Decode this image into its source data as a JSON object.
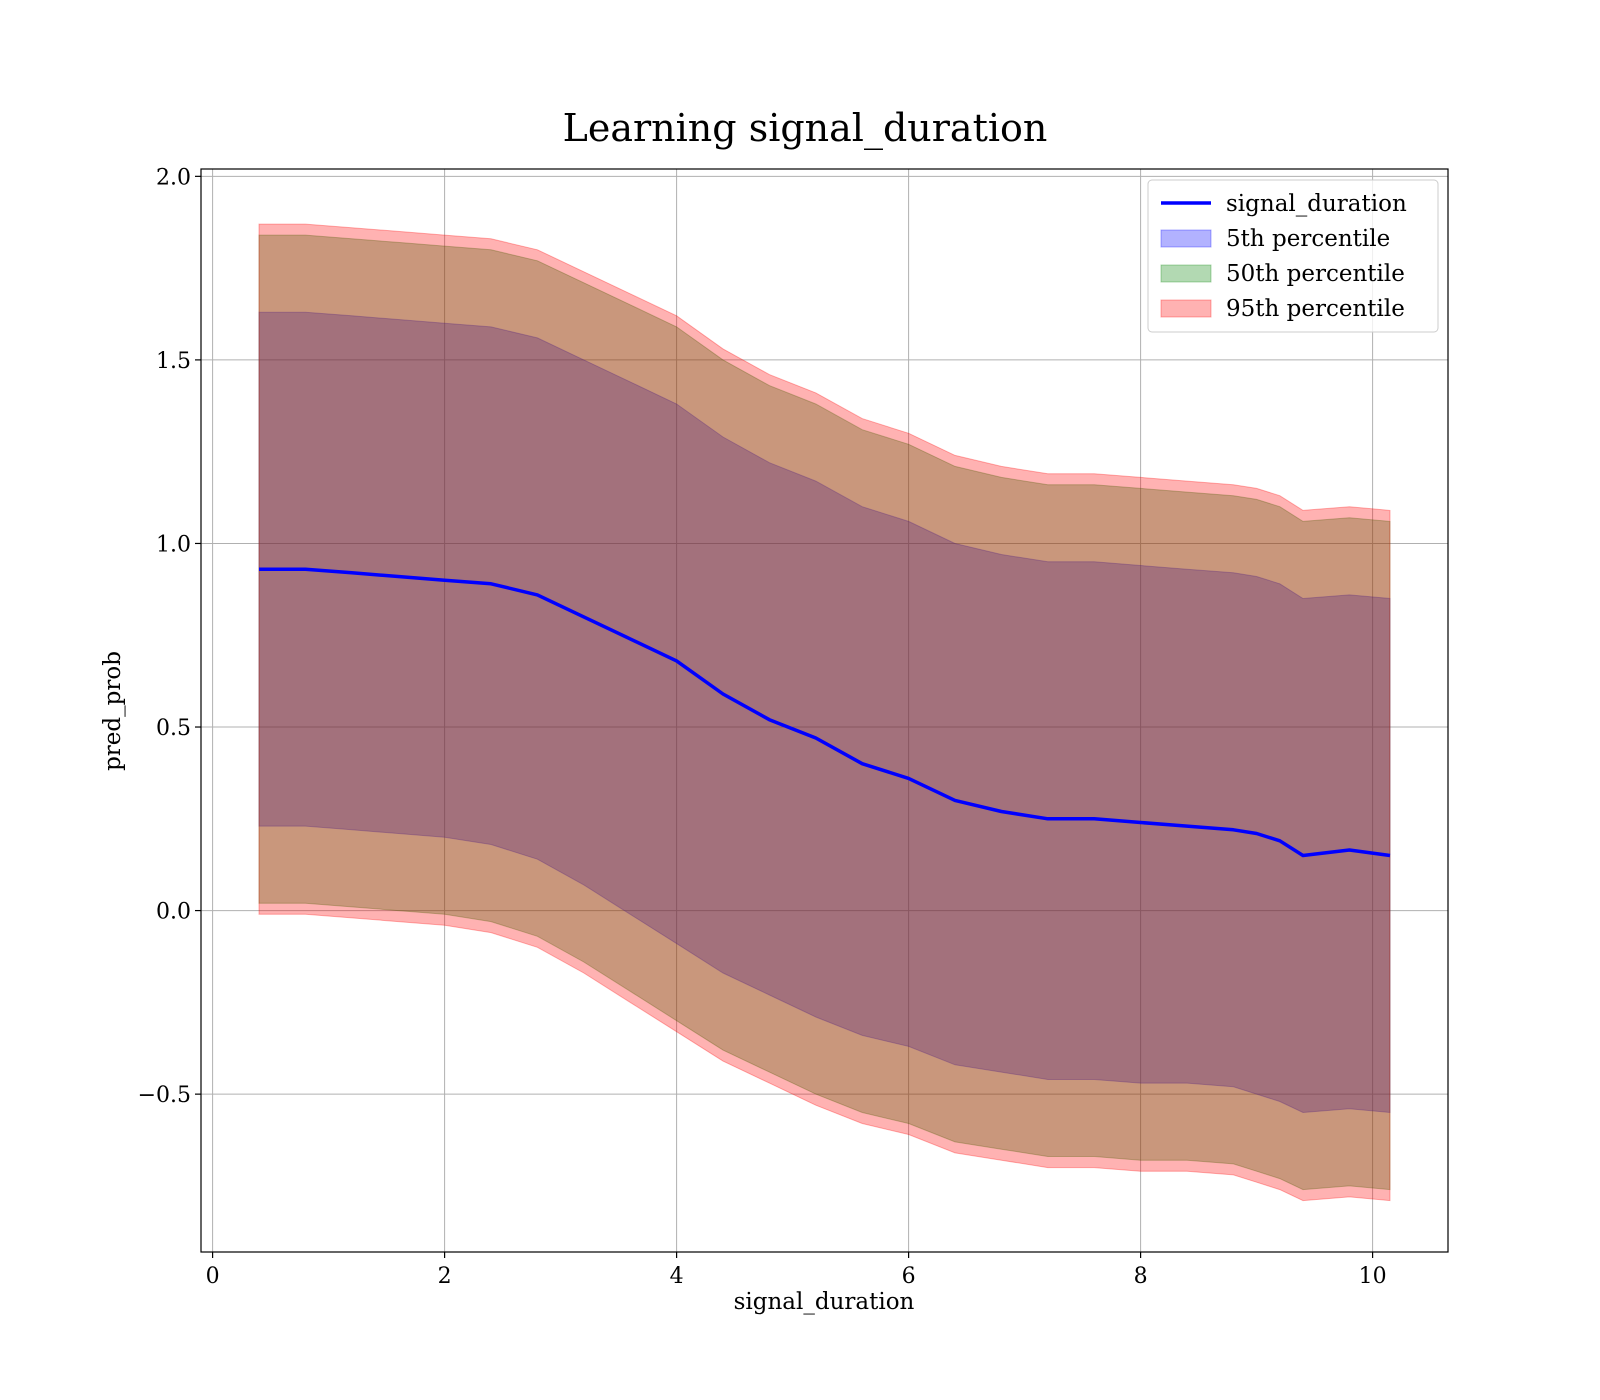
{
  "chart_data": {
    "type": "area",
    "title": "Learning signal_duration",
    "xlabel": "signal_duration",
    "ylabel": "pred_prob",
    "xlim": [
      -0.1,
      10.65
    ],
    "ylim": [
      -0.93,
      2.02
    ],
    "xticks": [
      0,
      2,
      4,
      6,
      8,
      10
    ],
    "xtick_labels": [
      "0",
      "2",
      "4",
      "6",
      "8",
      "10"
    ],
    "yticks": [
      -0.5,
      0.0,
      0.5,
      1.0,
      1.5,
      2.0
    ],
    "ytick_labels": [
      "−0.5",
      "0.0",
      "0.5",
      "1.0",
      "1.5",
      "2.0"
    ],
    "grid": true,
    "legend_position": "top-right",
    "x": [
      0.4,
      0.8,
      1.2,
      1.6,
      2.0,
      2.4,
      2.8,
      3.2,
      3.6,
      4.0,
      4.4,
      4.8,
      5.2,
      5.6,
      6.0,
      6.4,
      6.8,
      7.2,
      7.6,
      8.0,
      8.4,
      8.8,
      9.0,
      9.2,
      9.4,
      9.8,
      10.15
    ],
    "series": [
      {
        "name": "signal_duration",
        "kind": "line",
        "color": "#0000ff",
        "values": [
          0.93,
          0.93,
          0.92,
          0.91,
          0.9,
          0.89,
          0.86,
          0.8,
          0.74,
          0.68,
          0.59,
          0.52,
          0.47,
          0.4,
          0.36,
          0.3,
          0.27,
          0.25,
          0.25,
          0.24,
          0.23,
          0.22,
          0.21,
          0.19,
          0.15,
          0.165,
          0.15
        ]
      },
      {
        "name": "5th percentile",
        "kind": "band",
        "color": "#0000ff",
        "lower": [
          0.23,
          0.23,
          0.22,
          0.21,
          0.2,
          0.18,
          0.14,
          0.07,
          -0.01,
          -0.09,
          -0.17,
          -0.23,
          -0.29,
          -0.34,
          -0.37,
          -0.42,
          -0.44,
          -0.46,
          -0.46,
          -0.47,
          -0.47,
          -0.48,
          -0.5,
          -0.52,
          -0.55,
          -0.54,
          -0.55
        ],
        "upper": [
          1.63,
          1.63,
          1.62,
          1.61,
          1.6,
          1.59,
          1.56,
          1.5,
          1.44,
          1.38,
          1.29,
          1.22,
          1.17,
          1.1,
          1.06,
          1.0,
          0.97,
          0.95,
          0.95,
          0.94,
          0.93,
          0.92,
          0.91,
          0.89,
          0.85,
          0.86,
          0.85
        ]
      },
      {
        "name": "50th percentile",
        "kind": "band",
        "color": "#008000",
        "lower": [
          0.02,
          0.02,
          0.01,
          0.0,
          -0.01,
          -0.03,
          -0.07,
          -0.14,
          -0.22,
          -0.3,
          -0.38,
          -0.44,
          -0.5,
          -0.55,
          -0.58,
          -0.63,
          -0.65,
          -0.67,
          -0.67,
          -0.68,
          -0.68,
          -0.69,
          -0.71,
          -0.73,
          -0.76,
          -0.75,
          -0.76
        ],
        "upper": [
          1.84,
          1.84,
          1.83,
          1.82,
          1.81,
          1.8,
          1.77,
          1.71,
          1.65,
          1.59,
          1.5,
          1.43,
          1.38,
          1.31,
          1.27,
          1.21,
          1.18,
          1.16,
          1.16,
          1.15,
          1.14,
          1.13,
          1.12,
          1.1,
          1.06,
          1.07,
          1.06
        ]
      },
      {
        "name": "95th percentile",
        "kind": "band",
        "color": "#ff0000",
        "lower": [
          -0.01,
          -0.01,
          -0.02,
          -0.03,
          -0.04,
          -0.06,
          -0.1,
          -0.17,
          -0.25,
          -0.33,
          -0.41,
          -0.47,
          -0.53,
          -0.58,
          -0.61,
          -0.66,
          -0.68,
          -0.7,
          -0.7,
          -0.71,
          -0.71,
          -0.72,
          -0.74,
          -0.76,
          -0.79,
          -0.78,
          -0.79
        ],
        "upper": [
          1.87,
          1.87,
          1.86,
          1.85,
          1.84,
          1.83,
          1.8,
          1.74,
          1.68,
          1.62,
          1.53,
          1.46,
          1.41,
          1.34,
          1.3,
          1.24,
          1.21,
          1.19,
          1.19,
          1.18,
          1.17,
          1.16,
          1.15,
          1.13,
          1.09,
          1.1,
          1.09
        ]
      }
    ]
  }
}
